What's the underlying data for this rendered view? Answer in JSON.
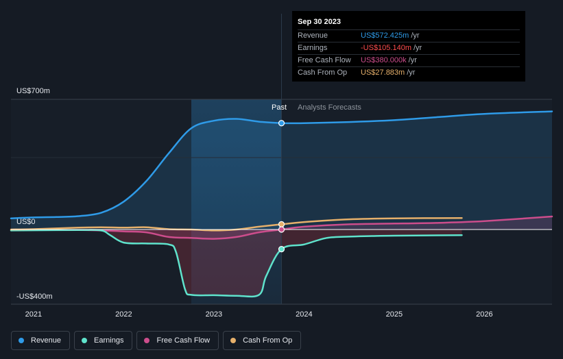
{
  "colors": {
    "revenue": "#2f9be8",
    "earnings": "#5fe3cc",
    "free_cash_flow": "#cc4d8c",
    "cash_from_op": "#e6b06b",
    "background": "#151b24"
  },
  "tooltip": {
    "date": "Sep 30 2023",
    "rows": [
      {
        "name": "Revenue",
        "value": "US$572.425m",
        "unit": "/yr",
        "color": "#2f9be8"
      },
      {
        "name": "Earnings",
        "value": "-US$105.140m",
        "unit": "/yr",
        "color": "#ff4d4d"
      },
      {
        "name": "Free Cash Flow",
        "value": "US$380.000k",
        "unit": "/yr",
        "color": "#cc4d8c"
      },
      {
        "name": "Cash From Op",
        "value": "US$27.883m",
        "unit": "/yr",
        "color": "#e6b06b"
      }
    ]
  },
  "legend": [
    {
      "label": "Revenue",
      "color": "#2f9be8"
    },
    {
      "label": "Earnings",
      "color": "#5fe3cc"
    },
    {
      "label": "Free Cash Flow",
      "color": "#cc4d8c"
    },
    {
      "label": "Cash From Op",
      "color": "#e6b06b"
    }
  ],
  "chart_data": {
    "type": "line",
    "title": "",
    "y_unit": "US$ millions",
    "ylim": [
      -400,
      700
    ],
    "y_tick_labels": {
      "top": "US$700m",
      "zero": "US$0",
      "bottom": "-US$400m"
    },
    "x_ticks": [
      2021,
      2022,
      2023,
      2024,
      2025,
      2026
    ],
    "xlim": [
      2020.75,
      2026.75
    ],
    "past_start": 2022.75,
    "divider": 2023.75,
    "past_label": "Past",
    "forecast_label": "Analysts Forecasts",
    "series": [
      {
        "name": "Revenue",
        "key": "revenue",
        "area": true,
        "points": [
          [
            2020.75,
            60
          ],
          [
            2021.0,
            65
          ],
          [
            2021.25,
            67
          ],
          [
            2021.5,
            72
          ],
          [
            2021.75,
            90
          ],
          [
            2022.0,
            150
          ],
          [
            2022.25,
            260
          ],
          [
            2022.5,
            410
          ],
          [
            2022.75,
            545
          ],
          [
            2023.0,
            585
          ],
          [
            2023.25,
            595
          ],
          [
            2023.5,
            580
          ],
          [
            2023.75,
            572
          ],
          [
            2024.0,
            572
          ],
          [
            2024.5,
            578
          ],
          [
            2025.0,
            588
          ],
          [
            2025.5,
            605
          ],
          [
            2026.0,
            622
          ],
          [
            2026.75,
            635
          ]
        ]
      },
      {
        "name": "Earnings",
        "key": "earnings",
        "area": true,
        "points": [
          [
            2020.75,
            -5
          ],
          [
            2021.0,
            -4
          ],
          [
            2021.5,
            -3
          ],
          [
            2021.75,
            -5
          ],
          [
            2021.85,
            -30
          ],
          [
            2022.0,
            -70
          ],
          [
            2022.25,
            -75
          ],
          [
            2022.5,
            -80
          ],
          [
            2022.58,
            -120
          ],
          [
            2022.68,
            -320
          ],
          [
            2022.75,
            -350
          ],
          [
            2023.0,
            -352
          ],
          [
            2023.25,
            -355
          ],
          [
            2023.5,
            -350
          ],
          [
            2023.58,
            -250
          ],
          [
            2023.75,
            -105
          ],
          [
            2024.0,
            -80
          ],
          [
            2024.25,
            -45
          ],
          [
            2024.5,
            -38
          ],
          [
            2024.75,
            -35
          ],
          [
            2025.0,
            -33
          ],
          [
            2025.75,
            -30
          ]
        ]
      },
      {
        "name": "Free Cash Flow",
        "key": "free_cash_flow",
        "area": true,
        "points": [
          [
            2020.75,
            -2
          ],
          [
            2021.0,
            -3
          ],
          [
            2021.5,
            -3
          ],
          [
            2021.75,
            -5
          ],
          [
            2022.0,
            -10
          ],
          [
            2022.25,
            -15
          ],
          [
            2022.5,
            -40
          ],
          [
            2022.75,
            -45
          ],
          [
            2023.0,
            -50
          ],
          [
            2023.25,
            -40
          ],
          [
            2023.5,
            -15
          ],
          [
            2023.75,
            0
          ],
          [
            2024.0,
            15
          ],
          [
            2024.5,
            28
          ],
          [
            2025.0,
            32
          ],
          [
            2025.5,
            36
          ],
          [
            2026.0,
            45
          ],
          [
            2026.75,
            70
          ]
        ]
      },
      {
        "name": "Cash From Op",
        "key": "cash_from_op",
        "area": false,
        "points": [
          [
            2020.75,
            0
          ],
          [
            2021.0,
            2
          ],
          [
            2021.5,
            10
          ],
          [
            2021.75,
            12
          ],
          [
            2022.0,
            10
          ],
          [
            2022.25,
            12
          ],
          [
            2022.5,
            2
          ],
          [
            2022.75,
            0
          ],
          [
            2023.0,
            -5
          ],
          [
            2023.25,
            0
          ],
          [
            2023.5,
            15
          ],
          [
            2023.75,
            28
          ],
          [
            2024.0,
            40
          ],
          [
            2024.5,
            55
          ],
          [
            2025.0,
            60
          ],
          [
            2025.75,
            62
          ]
        ]
      }
    ],
    "markers_at_divider": [
      {
        "key": "revenue",
        "value": 572
      },
      {
        "key": "cash_from_op",
        "value": 28
      },
      {
        "key": "free_cash_flow",
        "value": 0
      },
      {
        "key": "earnings",
        "value": -105
      }
    ]
  }
}
